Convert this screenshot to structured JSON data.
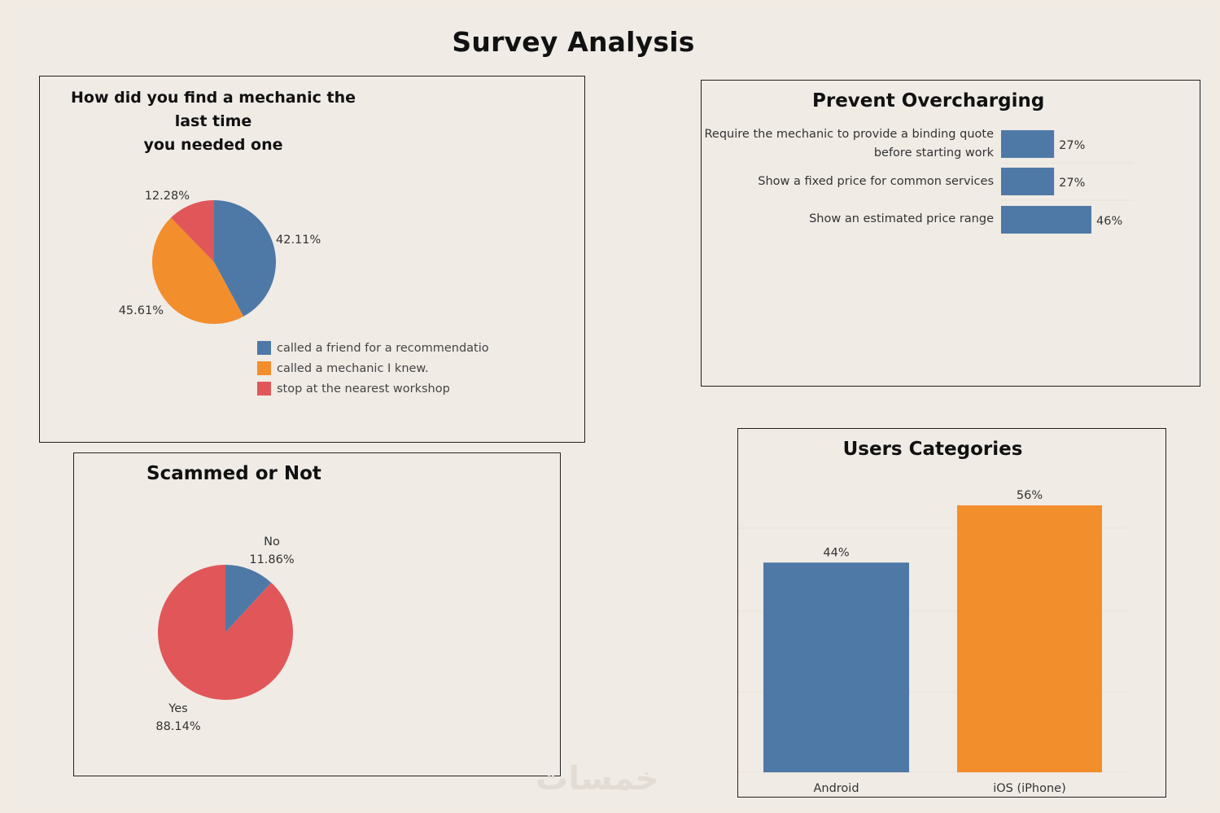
{
  "page": {
    "title": "Survey Analysis",
    "watermark": "خمسات"
  },
  "colors": {
    "blue": "#4e79a7",
    "orange": "#f28e2b",
    "red": "#e15759",
    "background": "#f0ebe5"
  },
  "chart_data": [
    {
      "id": "find_mechanic",
      "type": "pie",
      "title_line1": "How did you find a mechanic the last time",
      "title_line2": "you needed one",
      "categories": [
        "called a friend  for a recommendatio",
        "called a mechanic I knew.",
        "stop at the nearest workshop"
      ],
      "values": [
        42.11,
        45.61,
        12.28
      ],
      "value_labels": [
        "42.11%",
        "45.61%",
        "12.28%"
      ],
      "colors": [
        "#4e79a7",
        "#f28e2b",
        "#e15759"
      ],
      "legend": "bottom-right"
    },
    {
      "id": "prevent_overcharging",
      "type": "bar",
      "orientation": "horizontal",
      "title": "Prevent Overcharging",
      "categories": [
        [
          "Require the mechanic to provide a binding quote",
          "before starting work"
        ],
        [
          "Show a fixed price for common services"
        ],
        [
          "Show an estimated price range"
        ]
      ],
      "values": [
        27,
        27,
        46
      ],
      "value_labels": [
        "27%",
        "27%",
        "46%"
      ],
      "xlim": [
        0,
        66
      ]
    },
    {
      "id": "scammed",
      "type": "pie",
      "title": "Scammed or Not",
      "categories": [
        "No",
        "Yes"
      ],
      "values": [
        11.86,
        88.14
      ],
      "value_labels": [
        "11.86%",
        "88.14%"
      ],
      "colors": [
        "#4e79a7",
        "#e15759"
      ]
    },
    {
      "id": "users_categories",
      "type": "bar",
      "orientation": "vertical",
      "title": "Users Categories",
      "categories": [
        "Android",
        "iOS (iPhone)"
      ],
      "values": [
        44,
        56
      ],
      "value_labels": [
        "44%",
        "56%"
      ],
      "colors": [
        "#4e79a7",
        "#f28e2b"
      ],
      "ylim": [
        0,
        60
      ],
      "grid": true
    }
  ]
}
